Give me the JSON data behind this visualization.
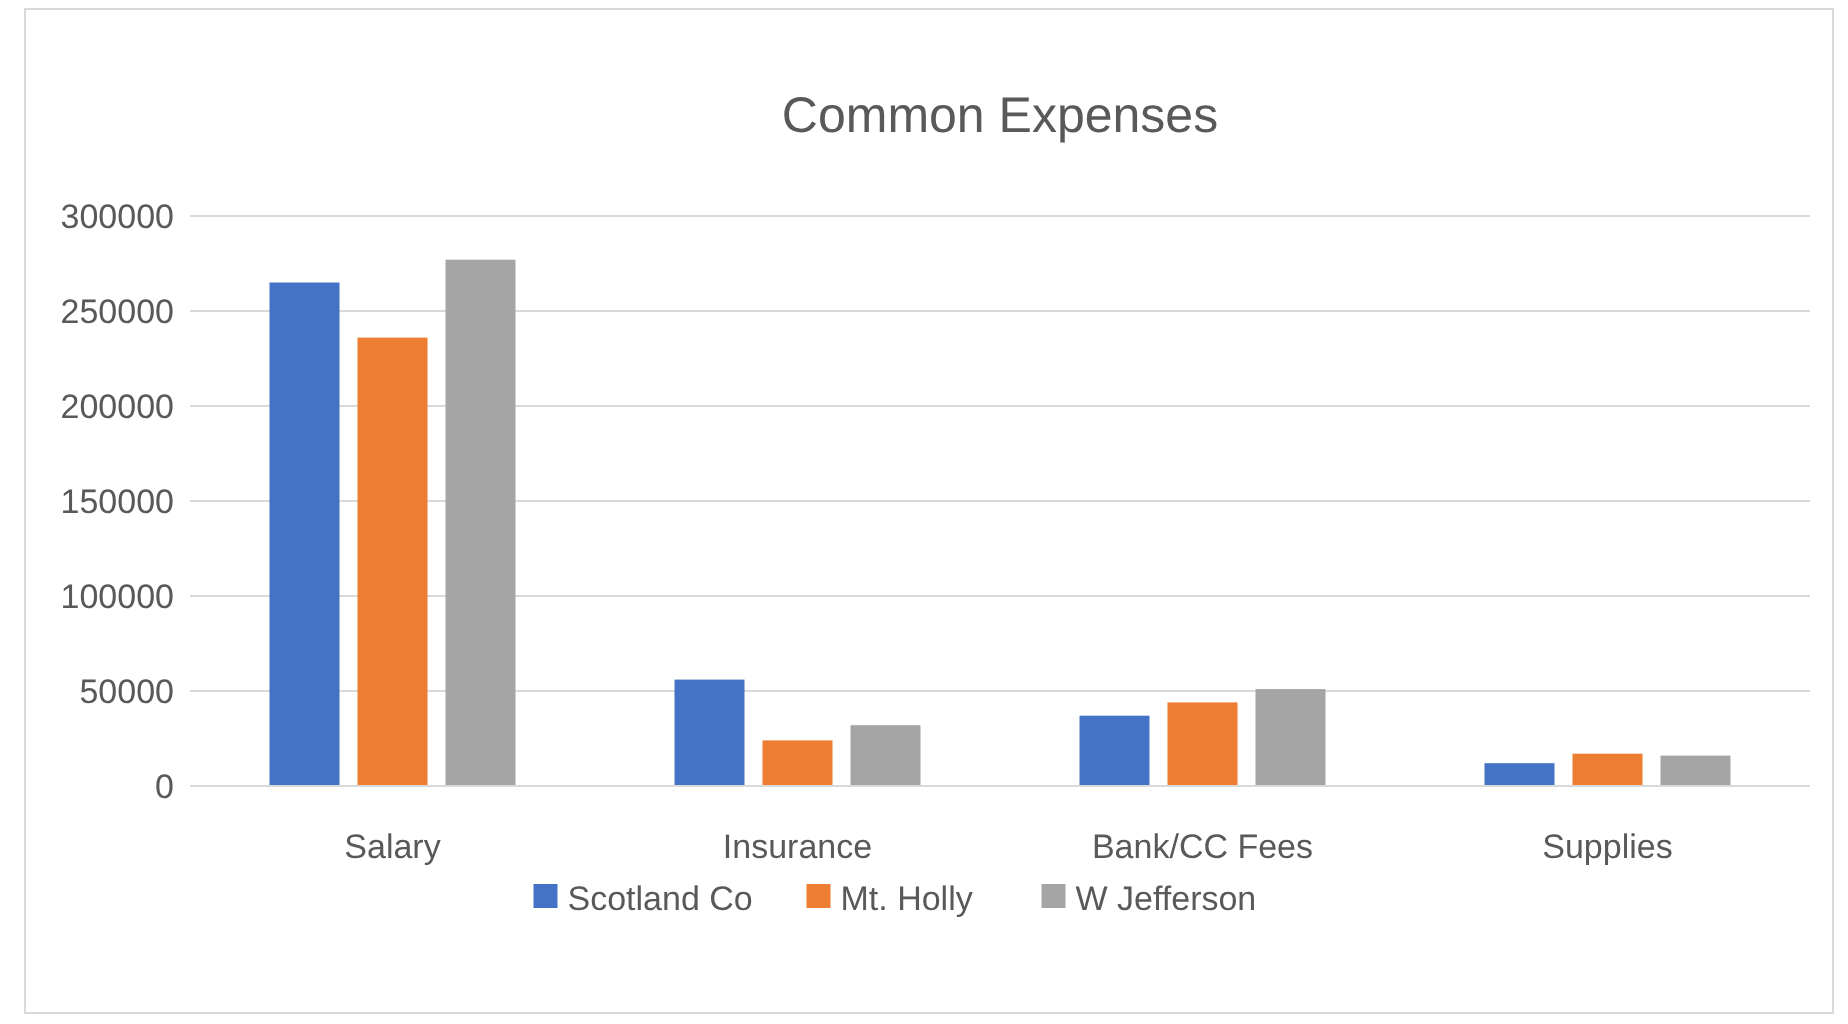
{
  "chart_data": {
    "type": "bar",
    "title": "Common Expenses",
    "categories": [
      "Salary",
      "Insurance",
      "Bank/CC Fees",
      "Supplies"
    ],
    "series": [
      {
        "name": "Scotland Co",
        "color": "#4472c4",
        "values": [
          265000,
          56000,
          37000,
          12000
        ]
      },
      {
        "name": "Mt. Holly",
        "color": "#ed7d31",
        "values": [
          236000,
          24000,
          44000,
          17000
        ]
      },
      {
        "name": "W Jefferson",
        "color": "#a5a5a5",
        "values": [
          277000,
          32000,
          51000,
          16000
        ]
      }
    ],
    "ylim": [
      0,
      300000
    ],
    "yticks": [
      0,
      50000,
      100000,
      150000,
      200000,
      250000,
      300000
    ],
    "grid": "y",
    "legend": "bottom"
  }
}
